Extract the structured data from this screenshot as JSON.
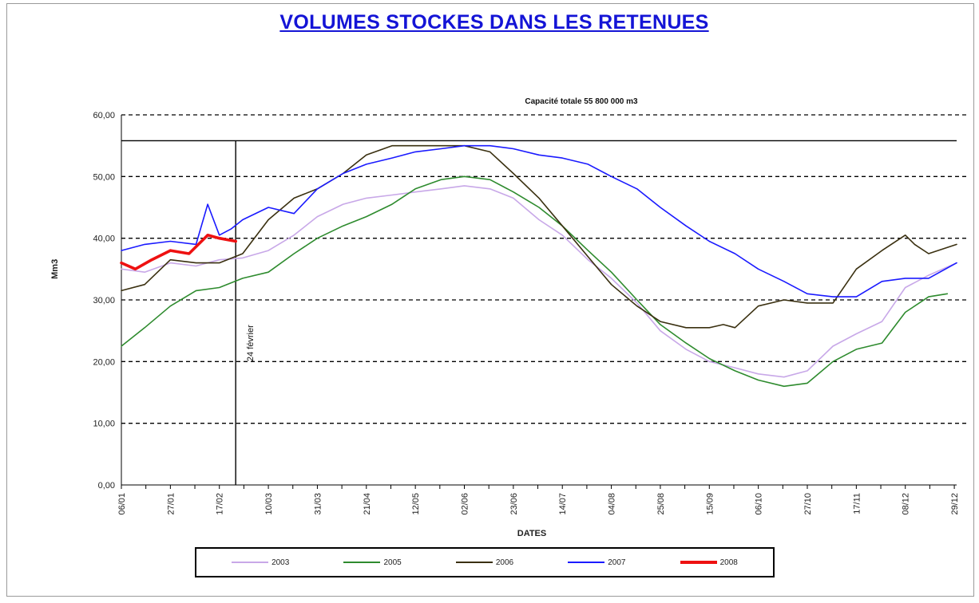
{
  "chart_data": {
    "type": "line",
    "title": "VOLUMES STOCKES DANS LES RETENUES",
    "annotation_capacity": "Capacité totale 55 800 000 m3",
    "annotation_date": "24 février",
    "xlabel": "DATES",
    "ylabel": "Mm3",
    "ylim": [
      0,
      60
    ],
    "ytick_values": [
      0,
      10,
      20,
      30,
      40,
      50,
      60
    ],
    "ytick_labels": [
      "0,00",
      "10,00",
      "20,00",
      "30,00",
      "40,00",
      "50,00",
      "60,00"
    ],
    "capacity_value": 55.8,
    "marker_day": 55,
    "x_range_days": [
      6,
      364
    ],
    "xtick_days": [
      6,
      27,
      48,
      69,
      90,
      111,
      132,
      153,
      174,
      195,
      216,
      237,
      258,
      279,
      300,
      321,
      342,
      363
    ],
    "xtick_labels": [
      "06/01",
      "27/01",
      "17/02",
      "10/03",
      "31/03",
      "21/04",
      "12/05",
      "02/06",
      "23/06",
      "14/07",
      "04/08",
      "25/08",
      "15/09",
      "06/10",
      "27/10",
      "17/11",
      "08/12",
      "29/12"
    ],
    "grid": "horizontal-dashed",
    "legend_position": "bottom",
    "series": [
      {
        "name": "2003",
        "color": "#c8a8e8",
        "x": [
          6,
          16,
          27,
          38,
          48,
          58,
          69,
          80,
          90,
          101,
          111,
          122,
          132,
          143,
          153,
          164,
          174,
          185,
          195,
          206,
          216,
          227,
          237,
          248,
          258,
          269,
          279,
          290,
          300,
          311,
          321,
          332,
          342,
          352,
          364
        ],
        "y": [
          35.0,
          34.5,
          36.0,
          35.5,
          36.5,
          36.8,
          38.0,
          40.5,
          43.5,
          45.5,
          46.5,
          47.0,
          47.5,
          48.0,
          48.5,
          48.0,
          46.5,
          43.0,
          40.5,
          36.5,
          33.5,
          29.5,
          25.0,
          22.0,
          20.0,
          19.0,
          18.0,
          17.5,
          18.5,
          22.5,
          24.5,
          26.5,
          32.0,
          34.0,
          36.0
        ]
      },
      {
        "name": "2005",
        "color": "#2e8b2e",
        "x": [
          6,
          16,
          27,
          38,
          48,
          58,
          69,
          80,
          90,
          101,
          111,
          122,
          132,
          143,
          153,
          164,
          174,
          185,
          195,
          206,
          216,
          227,
          237,
          248,
          258,
          269,
          279,
          290,
          300,
          311,
          321,
          332,
          342,
          352,
          360
        ],
        "y": [
          22.5,
          25.5,
          29.0,
          31.5,
          32.0,
          33.5,
          34.5,
          37.5,
          40.0,
          42.0,
          43.5,
          45.5,
          48.0,
          49.5,
          50.0,
          49.5,
          47.5,
          45.0,
          42.0,
          38.0,
          34.5,
          30.0,
          26.0,
          23.0,
          20.5,
          18.5,
          17.0,
          16.0,
          16.5,
          20.0,
          22.0,
          23.0,
          28.0,
          30.5,
          31.0
        ]
      },
      {
        "name": "2006",
        "color": "#3a3010",
        "x": [
          6,
          16,
          27,
          38,
          48,
          58,
          69,
          80,
          90,
          101,
          111,
          122,
          132,
          143,
          153,
          164,
          174,
          185,
          195,
          206,
          216,
          227,
          237,
          248,
          258,
          264,
          269,
          279,
          290,
          300,
          311,
          321,
          332,
          342,
          346,
          352,
          364
        ],
        "y": [
          31.5,
          32.5,
          36.5,
          36.0,
          36.0,
          37.5,
          43.0,
          46.5,
          48.0,
          50.5,
          53.5,
          55.0,
          55.0,
          55.0,
          55.0,
          54.0,
          50.5,
          46.5,
          42.0,
          37.0,
          32.5,
          29.0,
          26.5,
          25.5,
          25.5,
          26.0,
          25.5,
          29.0,
          30.0,
          29.5,
          29.5,
          35.0,
          38.0,
          40.5,
          39.0,
          37.5,
          39.0
        ]
      },
      {
        "name": "2007",
        "color": "#1a1aff",
        "x": [
          6,
          16,
          27,
          38,
          43,
          48,
          53,
          58,
          69,
          80,
          90,
          101,
          111,
          122,
          132,
          143,
          153,
          164,
          174,
          185,
          195,
          206,
          216,
          227,
          237,
          248,
          258,
          269,
          279,
          290,
          300,
          311,
          321,
          332,
          342,
          352,
          364
        ],
        "y": [
          38.0,
          39.0,
          39.5,
          39.0,
          45.5,
          40.5,
          41.5,
          43.0,
          45.0,
          44.0,
          48.0,
          50.5,
          52.0,
          53.0,
          54.0,
          54.5,
          55.0,
          55.0,
          54.5,
          53.5,
          53.0,
          52.0,
          50.0,
          48.0,
          45.0,
          42.0,
          39.5,
          37.5,
          35.0,
          33.0,
          31.0,
          30.5,
          30.5,
          33.0,
          33.5,
          33.5,
          36.0
        ]
      },
      {
        "name": "2008",
        "color": "#ee1111",
        "x": [
          6,
          12,
          19,
          27,
          35,
          43,
          48,
          55
        ],
        "y": [
          36.0,
          35.0,
          36.5,
          38.0,
          37.5,
          40.5,
          40.0,
          39.5
        ]
      }
    ]
  }
}
